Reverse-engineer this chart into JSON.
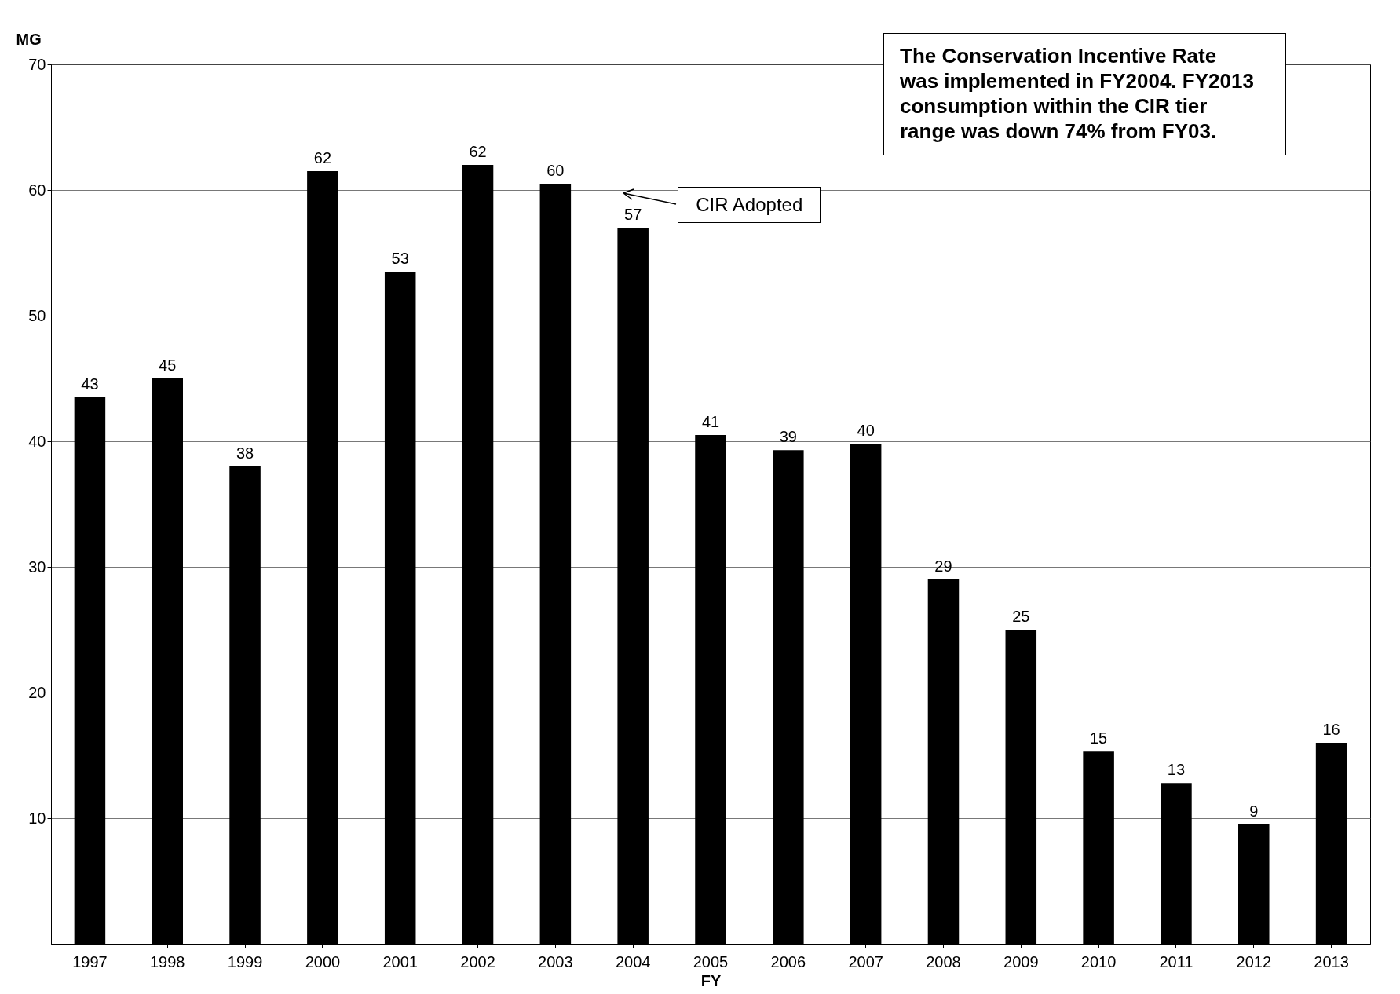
{
  "chart_data": {
    "type": "bar",
    "xlabel": "FY",
    "ylabel": "MG",
    "categories": [
      "1997",
      "1998",
      "1999",
      "2000",
      "2001",
      "2002",
      "2003",
      "2004",
      "2005",
      "2006",
      "2007",
      "2008",
      "2009",
      "2010",
      "2011",
      "2012",
      "2013"
    ],
    "values": [
      43.5,
      45,
      38,
      61.5,
      53.5,
      62,
      60.5,
      57,
      40.5,
      39.3,
      39.8,
      29,
      25,
      15.3,
      12.8,
      9.5,
      16
    ],
    "value_labels": [
      "43",
      "45",
      "38",
      "62",
      "53",
      "62",
      "60",
      "57",
      "41",
      "39",
      "40",
      "29",
      "25",
      "15",
      "13",
      "9",
      "16"
    ],
    "color": "#000000",
    "ylim": [
      0,
      70
    ],
    "yticks": [
      10,
      20,
      30,
      40,
      50,
      60,
      70
    ],
    "grid": "y",
    "annotations": [
      "The Conservation Incentive Rate\nwas implemented in FY2004. FY2013\nconsumption within the CIR tier\nrange was down 74% from FY03.",
      "CIR Adopted"
    ]
  }
}
